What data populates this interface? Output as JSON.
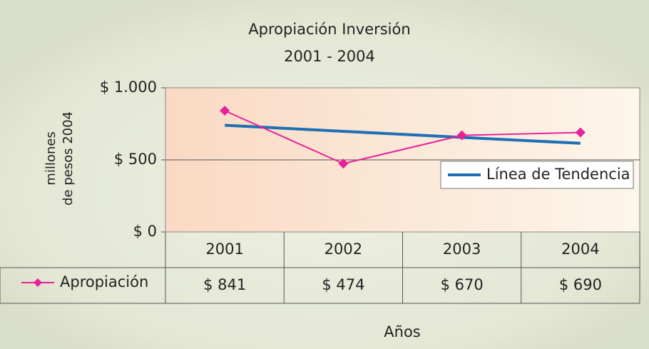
{
  "chart_data": {
    "type": "line",
    "title": "Apropiación Inversión",
    "subtitle": "2001 - 2004",
    "y_label": [
      "millones",
      "de pesos 2004"
    ],
    "x_label": "Años",
    "categories": [
      "2001",
      "2002",
      "2003",
      "2004"
    ],
    "series": [
      {
        "name": "Apropiación",
        "color": "#e8229a",
        "values": [
          841,
          474,
          670,
          690
        ],
        "value_labels": [
          "$ 841",
          "$ 474",
          "$ 670",
          "$ 690"
        ]
      },
      {
        "name": "Línea de Tendencia",
        "color": "#1f6fb5",
        "values": [
          740,
          698,
          656,
          615
        ]
      }
    ],
    "ylim": [
      0,
      1000
    ],
    "yticks": [
      {
        "value": 0,
        "label": "$ 0"
      },
      {
        "value": 500,
        "label": "$ 500"
      },
      {
        "value": 1000,
        "label": "$ 1.000"
      }
    ],
    "grid": true
  }
}
